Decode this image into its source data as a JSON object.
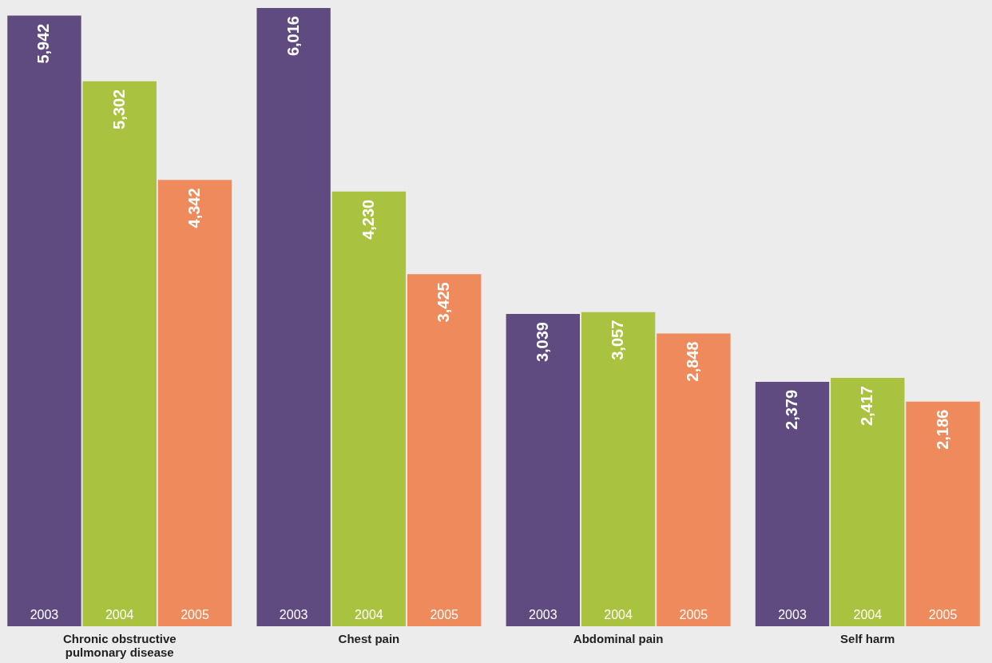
{
  "chart_data": {
    "type": "bar",
    "categories": [
      "Chronic obstructive pulmonary disease",
      "Chest pain",
      "Abdominal pain",
      "Self harm"
    ],
    "series": [
      {
        "name": "2003",
        "color": "#5f4b7f",
        "values": [
          5942,
          6016,
          3039,
          2379
        ],
        "value_labels": [
          "5,942",
          "6,016",
          "3,039",
          "2,379"
        ]
      },
      {
        "name": "2004",
        "color": "#a9c23f",
        "values": [
          5302,
          4230,
          3057,
          2417
        ],
        "value_labels": [
          "5,302",
          "4,230",
          "3,057",
          "2,417"
        ]
      },
      {
        "name": "2005",
        "color": "#ee8a5b",
        "values": [
          4342,
          3425,
          2848,
          2186
        ],
        "value_labels": [
          "4,342",
          "3,425",
          "2,848",
          "2,186"
        ]
      }
    ],
    "legend": false,
    "grid": false
  }
}
